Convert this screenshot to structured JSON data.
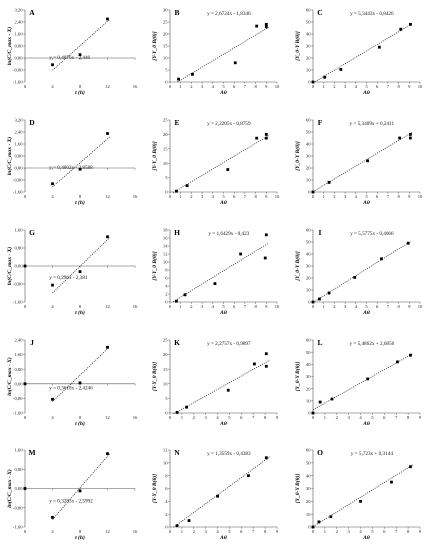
{
  "figure": {
    "axis_labels": {
      "col1_x": "t (h)",
      "col1_y": "ln(C/C_max - X)",
      "col2_x": "Aθ",
      "col2_y": "[Y-Y_0 B(θ)]",
      "col3_x": "Aθ",
      "col3_y": "[Y_0-Y B(θ)]"
    }
  },
  "chart_data": [
    {
      "id": "A",
      "type": "scatter",
      "equation": "y = 0,4076x - 2,446",
      "xlim": [
        0,
        16
      ],
      "xticks": [
        0,
        4,
        8,
        12,
        16
      ],
      "ylim": [
        -1.6,
        3.2
      ],
      "yticks": [
        -1.6,
        -0.8,
        0,
        0.8,
        1.6,
        2.4,
        3.2
      ],
      "ytick_labels": [
        "-1,60",
        "-0,80",
        "0,00",
        "0,80",
        "1,60",
        "2,40",
        "3,20"
      ],
      "x_axis_at": 0,
      "points": [
        [
          4,
          -0.45
        ],
        [
          8,
          0.22
        ],
        [
          12,
          2.6
        ]
      ],
      "fit": {
        "slope": 0.4076,
        "intercept": -2.446,
        "x_from": 4,
        "x_to": 12.3
      }
    },
    {
      "id": "B",
      "type": "scatter",
      "equation": "y = 2,6724x - 1,8346",
      "xlim": [
        0,
        10
      ],
      "xticks": [
        0,
        1,
        2,
        3,
        4,
        5,
        6,
        7,
        8,
        9,
        10
      ],
      "ylim": [
        0,
        30
      ],
      "yticks": [
        0,
        5,
        10,
        15,
        20,
        25,
        30
      ],
      "ytick_labels": [
        "0",
        "5",
        "10",
        "15",
        "20",
        "25",
        "30"
      ],
      "x_axis_at": 0,
      "points": [
        [
          0.8,
          1.2
        ],
        [
          2.1,
          3.2
        ],
        [
          6.1,
          8
        ],
        [
          8.1,
          23.3
        ],
        [
          9.0,
          24
        ],
        [
          9.0,
          23
        ]
      ],
      "fit": {
        "slope": 2.6724,
        "intercept": -1.8346,
        "x_from": 0.7,
        "x_to": 9.2
      }
    },
    {
      "id": "C",
      "type": "scatter",
      "equation": "y = 5,3443x - 0,8426",
      "xlim": [
        0,
        10
      ],
      "xticks": [
        0,
        1,
        2,
        3,
        4,
        5,
        6,
        7,
        8,
        9,
        10
      ],
      "ylim": [
        0,
        60
      ],
      "yticks": [
        0,
        10,
        20,
        30,
        40,
        50,
        60
      ],
      "ytick_labels": [
        "0",
        "10",
        "20",
        "30",
        "40",
        "50",
        "60"
      ],
      "x_axis_at": 0,
      "points": [
        [
          0,
          0
        ],
        [
          1.1,
          4
        ],
        [
          2.6,
          10.5
        ],
        [
          6.2,
          29
        ],
        [
          8.2,
          44
        ],
        [
          9.1,
          48
        ]
      ],
      "fit": {
        "slope": 5.3443,
        "intercept": -0.8426,
        "x_from": 0,
        "x_to": 9.3
      }
    },
    {
      "id": "D",
      "type": "scatter",
      "equation": "y = 0,4002x - 2,8588",
      "xlim": [
        0,
        16
      ],
      "xticks": [
        0,
        4,
        8,
        12,
        16
      ],
      "ylim": [
        -1.6,
        3.2
      ],
      "yticks": [
        -1.6,
        -0.8,
        0,
        0.8,
        1.6,
        2.4,
        3.2
      ],
      "ytick_labels": [
        "-1,60",
        "-0,80",
        "0,00",
        "0,80",
        "1,60",
        "2,40",
        "3,20"
      ],
      "x_axis_at": 0,
      "points": [
        [
          4,
          -1.05
        ],
        [
          8,
          -0.08
        ],
        [
          12,
          2.3
        ]
      ],
      "fit": {
        "slope": 0.4002,
        "intercept": -2.8588,
        "x_from": 4,
        "x_to": 12.3
      }
    },
    {
      "id": "E",
      "type": "scatter",
      "equation": "y = 2,2205x - 0,8759",
      "xlim": [
        0,
        10
      ],
      "xticks": [
        0,
        1,
        2,
        3,
        4,
        5,
        6,
        7,
        8,
        9,
        10
      ],
      "ylim": [
        0,
        25
      ],
      "yticks": [
        0,
        5,
        10,
        15,
        20,
        25
      ],
      "ytick_labels": [
        "0",
        "5",
        "10",
        "15",
        "20",
        "25"
      ],
      "x_axis_at": 0,
      "points": [
        [
          0.6,
          0.3
        ],
        [
          1.6,
          2.2
        ],
        [
          5.4,
          7.8
        ],
        [
          8.1,
          18.7
        ],
        [
          9.0,
          20
        ],
        [
          9.0,
          18.7
        ]
      ],
      "fit": {
        "slope": 2.2205,
        "intercept": -0.8759,
        "x_from": 0.3,
        "x_to": 9.2
      }
    },
    {
      "id": "F",
      "type": "scatter",
      "equation": "y = 5,3409x + 0,2411",
      "xlim": [
        0,
        10
      ],
      "xticks": [
        0,
        1,
        2,
        3,
        4,
        5,
        6,
        7,
        8,
        9,
        10
      ],
      "ylim": [
        0,
        60
      ],
      "yticks": [
        0,
        10,
        20,
        30,
        40,
        50,
        60
      ],
      "ytick_labels": [
        "0",
        "10",
        "20",
        "30",
        "40",
        "50",
        "60"
      ],
      "x_axis_at": 0,
      "points": [
        [
          0,
          0
        ],
        [
          1.5,
          8
        ],
        [
          5.1,
          26
        ],
        [
          8.1,
          45
        ],
        [
          9.1,
          48
        ],
        [
          9.1,
          45
        ]
      ],
      "fit": {
        "slope": 5.3409,
        "intercept": 0.2411,
        "x_from": 0,
        "x_to": 9.3
      }
    },
    {
      "id": "G",
      "type": "scatter",
      "equation": "y = 0,296x - 2,381",
      "xlim": [
        0,
        16
      ],
      "xticks": [
        0,
        4,
        8,
        12,
        16
      ],
      "ylim": [
        -1.6,
        1.6
      ],
      "yticks": [
        -1.6,
        -0.8,
        0,
        0.8,
        1.6
      ],
      "ytick_labels": [
        "-1,60",
        "-0,80",
        "0,00",
        "0,80",
        "1,60"
      ],
      "x_axis_at": 0,
      "points": [
        [
          0,
          0
        ],
        [
          4,
          -0.85
        ],
        [
          8,
          -0.25
        ],
        [
          12,
          1.3
        ]
      ],
      "fit": {
        "slope": 0.296,
        "intercept": -2.381,
        "x_from": 4,
        "x_to": 12.3
      }
    },
    {
      "id": "H",
      "type": "scatter",
      "equation": "y = 1,6429x - 0,423",
      "xlim": [
        0,
        10
      ],
      "xticks": [
        0,
        1,
        2,
        3,
        4,
        5,
        6,
        7,
        8,
        9,
        10
      ],
      "ylim": [
        0,
        18
      ],
      "yticks": [
        0,
        2,
        4,
        6,
        8,
        10,
        12,
        14,
        16,
        18
      ],
      "ytick_labels": [
        "0",
        "2",
        "4",
        "6",
        "8",
        "10",
        "12",
        "14",
        "16",
        "18"
      ],
      "x_axis_at": 0,
      "points": [
        [
          0.6,
          0.2
        ],
        [
          1.4,
          1.8
        ],
        [
          4.2,
          4.6
        ],
        [
          6.6,
          12
        ],
        [
          8.9,
          11
        ],
        [
          9.0,
          16.8
        ]
      ],
      "fit": {
        "slope": 1.6429,
        "intercept": -0.423,
        "x_from": 0.3,
        "x_to": 9.2
      }
    },
    {
      "id": "I",
      "type": "scatter",
      "equation": "y = 5,5775x - 0,4066",
      "xlim": [
        0,
        10
      ],
      "xticks": [
        0,
        1,
        2,
        3,
        4,
        5,
        6,
        7,
        8,
        9,
        10
      ],
      "ylim": [
        0,
        60
      ],
      "yticks": [
        0,
        10,
        20,
        30,
        40,
        50,
        60
      ],
      "ytick_labels": [
        "0",
        "10",
        "20",
        "30",
        "40",
        "50",
        "60"
      ],
      "x_axis_at": 0,
      "points": [
        [
          0,
          0
        ],
        [
          0.6,
          2.5
        ],
        [
          1.5,
          7.5
        ],
        [
          3.9,
          20.5
        ],
        [
          6.4,
          36
        ],
        [
          8.9,
          49
        ]
      ],
      "fit": {
        "slope": 5.5775,
        "intercept": -0.4066,
        "x_from": 0,
        "x_to": 9.1
      }
    },
    {
      "id": "J",
      "type": "scatter",
      "equation": "y = 0,3618x - 2,4246",
      "xlim": [
        0,
        16
      ],
      "xticks": [
        0,
        4,
        8,
        12,
        16
      ],
      "ylim": [
        -1.6,
        2.4
      ],
      "yticks": [
        -1.6,
        -0.8,
        0,
        0.8,
        1.6,
        2.4
      ],
      "ytick_labels": [
        "-1,60",
        "-0,80",
        "0,00",
        "0,80",
        "1,60",
        "2,40"
      ],
      "x_axis_at": 0,
      "points": [
        [
          0,
          0
        ],
        [
          4,
          -0.85
        ],
        [
          8,
          0.05
        ],
        [
          12,
          2
        ]
      ],
      "fit": {
        "slope": 0.3618,
        "intercept": -2.4246,
        "x_from": 4,
        "x_to": 12.3
      }
    },
    {
      "id": "K",
      "type": "scatter",
      "equation": "y = 2,2757x - 0,9897",
      "xlim": [
        0,
        9
      ],
      "xticks": [
        0,
        1,
        2,
        3,
        4,
        5,
        6,
        7,
        8,
        9
      ],
      "ylim": [
        0,
        25
      ],
      "yticks": [
        0,
        5,
        10,
        15,
        20,
        25
      ],
      "ytick_labels": [
        "0",
        "5",
        "10",
        "15",
        "20",
        "25"
      ],
      "x_axis_at": 0,
      "points": [
        [
          0.6,
          0.2
        ],
        [
          1.4,
          2
        ],
        [
          4.9,
          7.8
        ],
        [
          7.1,
          16.8
        ],
        [
          8.1,
          20.3
        ],
        [
          8.1,
          16
        ]
      ],
      "fit": {
        "slope": 2.2757,
        "intercept": -0.9897,
        "x_from": 0.3,
        "x_to": 8.4
      }
    },
    {
      "id": "L",
      "type": "scatter",
      "equation": "y = 5,4862x + 2,6856",
      "xlim": [
        0,
        9
      ],
      "xticks": [
        0,
        1,
        2,
        3,
        4,
        5,
        6,
        7,
        8,
        9
      ],
      "ylim": [
        0,
        60
      ],
      "yticks": [
        0,
        10,
        20,
        30,
        40,
        50,
        60
      ],
      "ytick_labels": [
        "0",
        "10",
        "20",
        "30",
        "40",
        "50",
        "60"
      ],
      "x_axis_at": 0,
      "points": [
        [
          0,
          0
        ],
        [
          0.6,
          9
        ],
        [
          1.6,
          11.5
        ],
        [
          4.6,
          28
        ],
        [
          7.1,
          42
        ],
        [
          8.2,
          47.5
        ]
      ],
      "fit": {
        "slope": 5.4862,
        "intercept": 2.6856,
        "x_from": 0,
        "x_to": 8.4
      }
    },
    {
      "id": "M",
      "type": "scatter",
      "equation": "y = 0,3283x - 2,5992",
      "xlim": [
        0,
        16
      ],
      "xticks": [
        0,
        4,
        8,
        12,
        16
      ],
      "ylim": [
        -1.6,
        1.6
      ],
      "yticks": [
        -1.6,
        -0.8,
        0,
        0.8,
        1.6
      ],
      "ytick_labels": [
        "-1,60",
        "-0,80",
        "0,00",
        "0,80",
        "1,60"
      ],
      "x_axis_at": 0,
      "points": [
        [
          0,
          0
        ],
        [
          4,
          -1.2
        ],
        [
          8,
          -0.1
        ],
        [
          12,
          1.45
        ]
      ],
      "fit": {
        "slope": 0.3283,
        "intercept": -2.5992,
        "x_from": 4,
        "x_to": 12.3
      }
    },
    {
      "id": "N",
      "type": "scatter",
      "equation": "y = 1,3559x - 0,4383",
      "xlim": [
        0,
        9
      ],
      "xticks": [
        0,
        1,
        2,
        3,
        4,
        5,
        6,
        7,
        8,
        9
      ],
      "ylim": [
        0,
        12
      ],
      "yticks": [
        0,
        2,
        4,
        6,
        8,
        10,
        12
      ],
      "ytick_labels": [
        "0",
        "2",
        "4",
        "6",
        "8",
        "10",
        "12"
      ],
      "x_axis_at": 0,
      "points": [
        [
          0.6,
          0.2
        ],
        [
          1.6,
          1
        ],
        [
          4,
          4.8
        ],
        [
          6.6,
          8
        ],
        [
          8.1,
          10.8
        ]
      ],
      "fit": {
        "slope": 1.3559,
        "intercept": -0.4383,
        "x_from": 0.3,
        "x_to": 8.4
      }
    },
    {
      "id": "O",
      "type": "scatter",
      "equation": "y = 5,723x + 0,3144",
      "xlim": [
        0,
        9
      ],
      "xticks": [
        0,
        1,
        2,
        3,
        4,
        5,
        6,
        7,
        8,
        9
      ],
      "ylim": [
        0,
        60
      ],
      "yticks": [
        0,
        10,
        20,
        30,
        40,
        50,
        60
      ],
      "ytick_labels": [
        "0",
        "10",
        "20",
        "30",
        "40",
        "50",
        "60"
      ],
      "x_axis_at": 0,
      "points": [
        [
          0,
          0
        ],
        [
          0.5,
          4
        ],
        [
          1.5,
          8
        ],
        [
          4,
          20
        ],
        [
          6.6,
          35
        ],
        [
          8.2,
          47
        ]
      ],
      "fit": {
        "slope": 5.723,
        "intercept": 0.3144,
        "x_from": 0,
        "x_to": 8.4
      }
    }
  ]
}
